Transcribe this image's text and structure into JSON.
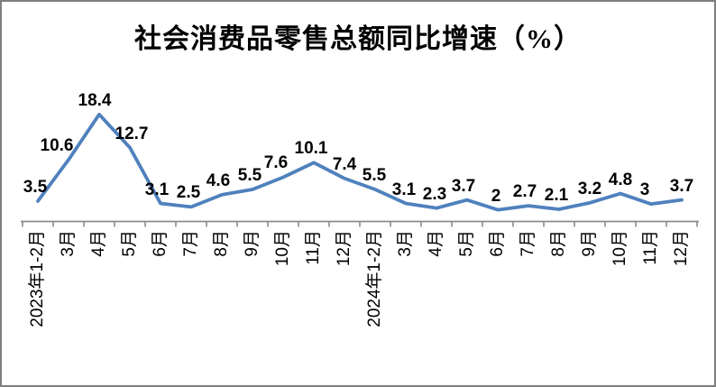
{
  "chart_data": {
    "type": "line",
    "title": "社会消费品零售总额同比增速（%）",
    "categories": [
      "2023年1-2月",
      "3月",
      "4月",
      "5月",
      "6月",
      "7月",
      "8月",
      "9月",
      "10月",
      "11月",
      "12月",
      "2024年1-2月",
      "3月",
      "4月",
      "5月",
      "6月",
      "7月",
      "8月",
      "9月",
      "10月",
      "11月",
      "12月"
    ],
    "values": [
      3.5,
      10.6,
      18.4,
      12.7,
      3.1,
      2.5,
      4.6,
      5.5,
      7.6,
      10.1,
      7.4,
      5.5,
      3.1,
      2.3,
      3.7,
      2,
      2.7,
      2.1,
      3.2,
      4.8,
      3,
      3.7
    ],
    "data_labels": [
      "3.5",
      "10.6",
      "18.4",
      "12.7",
      "3.1",
      "2.5",
      "4.6",
      "5.5",
      "7.6",
      "10.1",
      "7.4",
      "5.5",
      "3.1",
      "2.3",
      "3.7",
      "2",
      "2.7",
      "2.1",
      "3.2",
      "4.8",
      "3",
      "3.7"
    ],
    "xlabel": "",
    "ylabel": "",
    "ylim": [
      0,
      20
    ],
    "grid": false,
    "legend": "none",
    "line_color": "#4F81BD",
    "axis_color": "#8C8C8C",
    "text_color": "#000000",
    "background_color": "#FFFFFF",
    "frame_border_color": "#7F7F7F"
  }
}
